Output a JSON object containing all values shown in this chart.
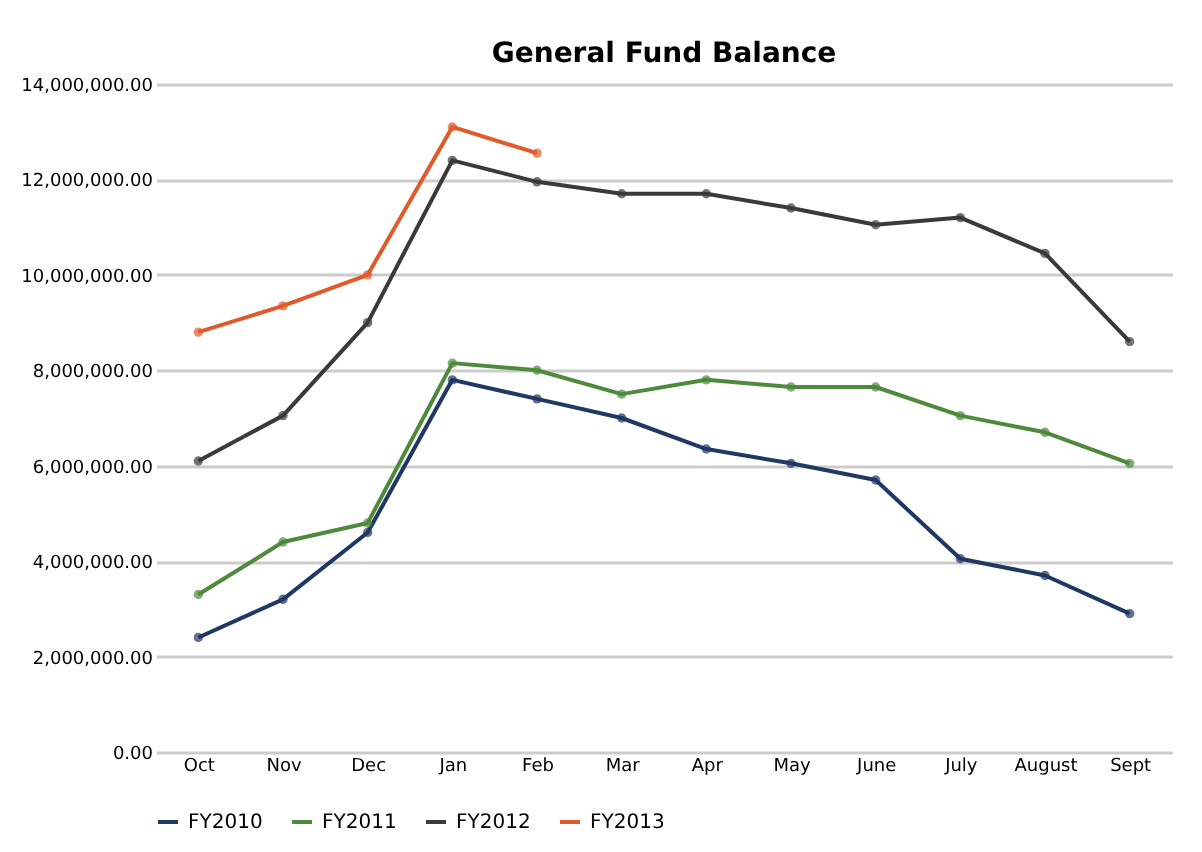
{
  "chart_data": {
    "type": "line",
    "title": "General Fund Balance",
    "categories": [
      "Oct",
      "Nov",
      "Dec",
      "Jan",
      "Feb",
      "Mar",
      "Apr",
      "May",
      "June",
      "July",
      "August",
      "Sept"
    ],
    "series": [
      {
        "name": "FY2010",
        "color": "#1f3864",
        "values": [
          2400000,
          3200000,
          4600000,
          7800000,
          7400000,
          7000000,
          6350000,
          6050000,
          5700000,
          4050000,
          3700000,
          2900000
        ]
      },
      {
        "name": "FY2011",
        "color": "#4f8a3c",
        "values": [
          3300000,
          4400000,
          4800000,
          8150000,
          8000000,
          7500000,
          7800000,
          7650000,
          7650000,
          7050000,
          6700000,
          6050000
        ]
      },
      {
        "name": "FY2012",
        "color": "#3a3a3a",
        "values": [
          6100000,
          7050000,
          9000000,
          12400000,
          11950000,
          11700000,
          11700000,
          11400000,
          11050000,
          11200000,
          10450000,
          8600000
        ]
      },
      {
        "name": "FY2013",
        "color": "#e05a2b",
        "values": [
          8800000,
          9350000,
          10000000,
          13100000,
          12550000,
          null,
          null,
          null,
          null,
          null,
          null,
          null
        ]
      }
    ],
    "ylim": [
      0,
      14000000
    ],
    "yticks": [
      {
        "value": 0,
        "label": "0.00"
      },
      {
        "value": 2000000,
        "label": "2,000,000.00"
      },
      {
        "value": 4000000,
        "label": "4,000,000.00"
      },
      {
        "value": 6000000,
        "label": "6,000,000.00"
      },
      {
        "value": 8000000,
        "label": "8,000,000.00"
      },
      {
        "value": 10000000,
        "label": "10,000,000.00"
      },
      {
        "value": 12000000,
        "label": "12,000,000.00"
      },
      {
        "value": 14000000,
        "label": "14,000,000.00"
      }
    ],
    "grid": "y",
    "legend": "bottom",
    "marker": "circle",
    "line_style": "solid"
  }
}
